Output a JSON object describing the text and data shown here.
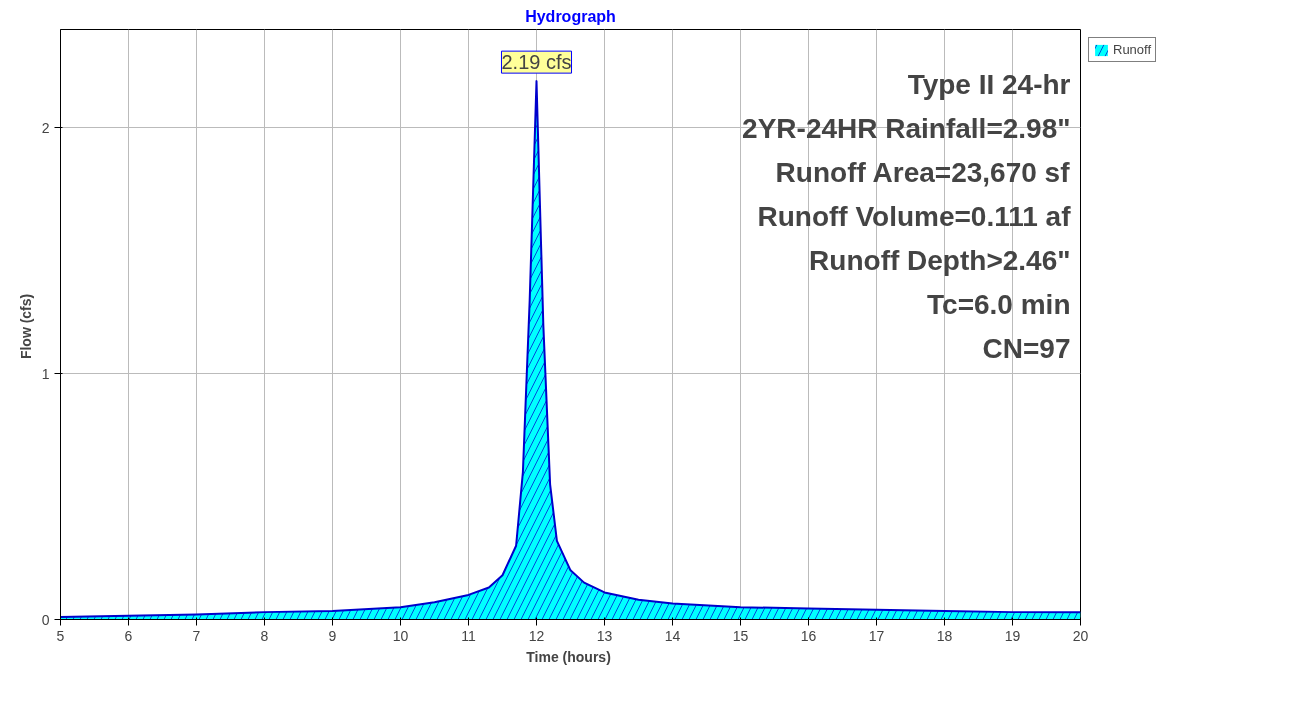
{
  "chart_data": {
    "type": "area",
    "title": "Hydrograph",
    "xlabel": "Time  (hours)",
    "ylabel": "Flow  (cfs)",
    "x": [
      5,
      6,
      7,
      8,
      9,
      10,
      10.5,
      11,
      11.3,
      11.5,
      11.7,
      11.8,
      11.9,
      12.0,
      12.1,
      12.2,
      12.3,
      12.5,
      12.7,
      13,
      13.5,
      14,
      15,
      16,
      17,
      18,
      19,
      20
    ],
    "series": [
      {
        "name": "Runoff",
        "color": "#00ffff",
        "values": [
          0.01,
          0.015,
          0.02,
          0.03,
          0.035,
          0.05,
          0.07,
          0.1,
          0.13,
          0.18,
          0.3,
          0.6,
          1.3,
          2.19,
          1.2,
          0.55,
          0.32,
          0.2,
          0.15,
          0.11,
          0.08,
          0.065,
          0.05,
          0.045,
          0.04,
          0.035,
          0.03,
          0.03
        ]
      }
    ],
    "xlim": [
      5,
      20
    ],
    "ylim": [
      0,
      2.4
    ],
    "xticks": [
      5,
      6,
      7,
      8,
      9,
      10,
      11,
      12,
      13,
      14,
      15,
      16,
      17,
      18,
      19,
      20
    ],
    "yticks": [
      0,
      1,
      2
    ],
    "grid": true,
    "legend": "top right",
    "annotations": [
      {
        "text": "2.19 cfs",
        "x": 12,
        "y": 2.19
      },
      "Type II 24-hr",
      "2YR-24HR Rainfall=2.98\"",
      "Runoff Area=23,670 sf",
      "Runoff Volume=0.111 af",
      "Runoff Depth>2.46\"",
      "Tc=6.0 min",
      "CN=97"
    ]
  }
}
